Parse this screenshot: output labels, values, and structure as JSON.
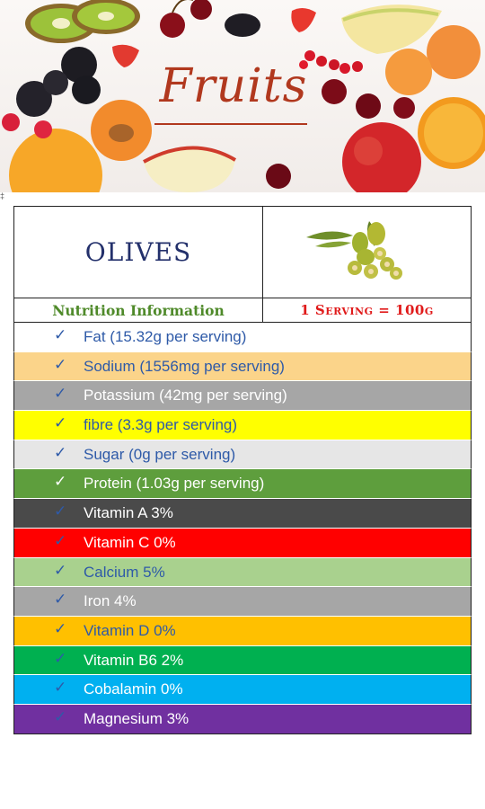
{
  "banner": {
    "title": "Fruits"
  },
  "corner_mark": "‡",
  "card": {
    "name": "OLIVES",
    "nutrition_label": "Nutrition Information",
    "serving_label": "1 Serving = 100g"
  },
  "rows": [
    {
      "label": "Fat (15.32g per serving)",
      "bg": "#ffffff",
      "text": "#2e5aa8",
      "check": "#2e5aa8"
    },
    {
      "label": "Sodium (1556mg per serving)",
      "bg": "#fbd48a",
      "text": "#2e5aa8",
      "check": "#2e5aa8"
    },
    {
      "label": "Potassium (42mg per serving)",
      "bg": "#a6a6a6",
      "text": "#ffffff",
      "check": "#2e5aa8"
    },
    {
      "label": "fibre (3.3g per serving)",
      "bg": "#ffff00",
      "text": "#2e5aa8",
      "check": "#2e5aa8"
    },
    {
      "label": "Sugar (0g per serving)",
      "bg": "#e6e6e6",
      "text": "#2e5aa8",
      "check": "#2e5aa8"
    },
    {
      "label": "Protein (1.03g per serving)",
      "bg": "#5e9e3d",
      "text": "#ffffff",
      "check": "#ffffff"
    },
    {
      "label": "Vitamin A 3%",
      "bg": "#4a4a4a",
      "text": "#ffffff",
      "check": "#2e5aa8"
    },
    {
      "label": "Vitamin C 0%",
      "bg": "#ff0000",
      "text": "#ffffff",
      "check": "#2e5aa8"
    },
    {
      "label": "Calcium 5%",
      "bg": "#a9d18e",
      "text": "#2e5aa8",
      "check": "#2e5aa8"
    },
    {
      "label": "Iron 4%",
      "bg": "#a6a6a6",
      "text": "#ffffff",
      "check": "#2e5aa8"
    },
    {
      "label": "Vitamin D 0%",
      "bg": "#ffc000",
      "text": "#2e5aa8",
      "check": "#2e5aa8"
    },
    {
      "label": "Vitamin B6 2%",
      "bg": "#00b050",
      "text": "#ffffff",
      "check": "#2e5aa8"
    },
    {
      "label": "Cobalamin 0%",
      "bg": "#00b0f0",
      "text": "#ffffff",
      "check": "#2e5aa8"
    },
    {
      "label": "Magnesium 3%",
      "bg": "#7030a0",
      "text": "#ffffff",
      "check": "#2e5aa8"
    }
  ],
  "check_glyph": "✓",
  "icons": {
    "banner": "fruit-banner-image",
    "olives": "olives-image"
  }
}
